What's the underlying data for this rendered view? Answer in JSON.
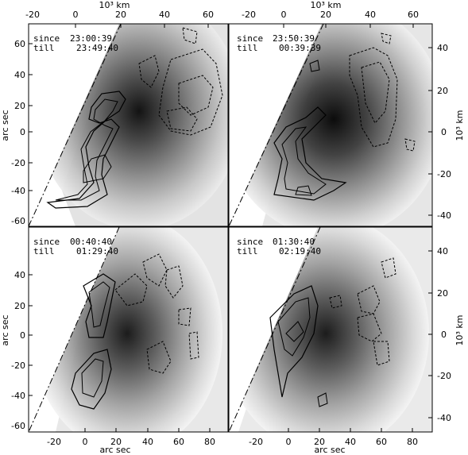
{
  "figure": {
    "axis_titles": {
      "top": "10³ km",
      "bottom": "arc sec",
      "left": "arc sec",
      "right": "10³ km"
    },
    "ticks": {
      "top_km": [
        "-20",
        "0",
        "20",
        "40",
        "60"
      ],
      "bottom_arcsec": [
        "-20",
        "0",
        "20",
        "40",
        "60",
        "80"
      ],
      "left_top_arcsec": [
        "60",
        "40",
        "20",
        "0",
        "-20",
        "-40",
        "-60"
      ],
      "left_bottom_arcsec": [
        "40",
        "20",
        "0",
        "-20",
        "-40",
        "-60"
      ],
      "right_top_km": [
        "40",
        "20",
        "0",
        "-20",
        "-40"
      ],
      "right_bottom_km": [
        "40",
        "20",
        "0",
        "-20",
        "-40"
      ]
    },
    "panels": [
      {
        "since_label": "since",
        "since": "23:00:39",
        "till_label": "till",
        "till": "23:49:40"
      },
      {
        "since_label": "since",
        "since": "23:50:39",
        "till_label": "till",
        "till": "00:39:39"
      },
      {
        "since_label": "since",
        "since": "00:40:40",
        "till_label": "till",
        "till": "01:29:40"
      },
      {
        "since_label": "since",
        "since": "01:30:40",
        "till_label": "till",
        "till": "02:19:40"
      }
    ]
  }
}
